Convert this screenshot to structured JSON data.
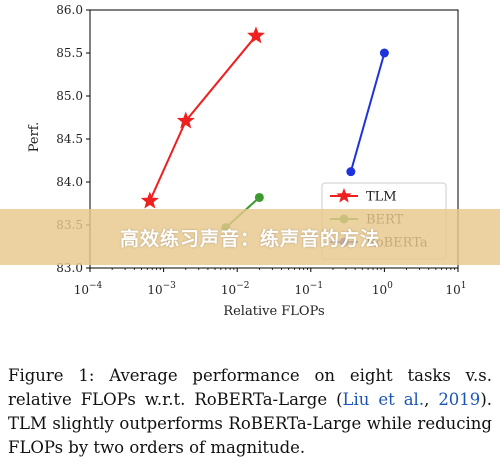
{
  "chart_data": {
    "type": "line",
    "xscale": "log",
    "xlabel": "Relative FLOPs",
    "ylabel": "Perf.",
    "xlim": [
      0.0001,
      10
    ],
    "ylim": [
      83.0,
      86.0
    ],
    "x_ticks": [
      {
        "value": 0.0001,
        "base": "10",
        "exp": "−4"
      },
      {
        "value": 0.001,
        "base": "10",
        "exp": "−3"
      },
      {
        "value": 0.01,
        "base": "10",
        "exp": "−2"
      },
      {
        "value": 0.1,
        "base": "10",
        "exp": "−1"
      },
      {
        "value": 1,
        "base": "10",
        "exp": "0"
      },
      {
        "value": 10,
        "base": "10",
        "exp": "1"
      }
    ],
    "y_ticks": [
      "83.0",
      "83.5",
      "84.0",
      "84.5",
      "85.0",
      "85.5",
      "86.0"
    ],
    "grid": false,
    "legend_position": "bottom-right",
    "series": [
      {
        "name": "TLM",
        "color": "#ee2020",
        "marker": "star",
        "x": [
          0.00065,
          0.002,
          0.018
        ],
        "y": [
          83.78,
          84.71,
          85.7
        ]
      },
      {
        "name": "BERT",
        "color": "#3c9a2e",
        "marker": "circle",
        "x": [
          0.007,
          0.02
        ],
        "y": [
          83.47,
          83.82
        ]
      },
      {
        "name": "RoBERTa",
        "color": "#1f33dd",
        "marker": "circle",
        "x": [
          0.35,
          1.0
        ],
        "y": [
          84.12,
          85.5
        ]
      }
    ]
  },
  "banner": {
    "text": "高效练习声音：练声音的方法"
  },
  "caption": {
    "part1": "Figure 1: Average performance on eight tasks v.s. relative FLOPs w.r.t. RoBERTa-Large (",
    "cite_authors": "Liu et al.",
    "cite_sep": ", ",
    "cite_year": "2019",
    "part2": "). TLM slightly outperforms RoBERTa-Large while reducing FLOPs by two orders of magnitude."
  }
}
